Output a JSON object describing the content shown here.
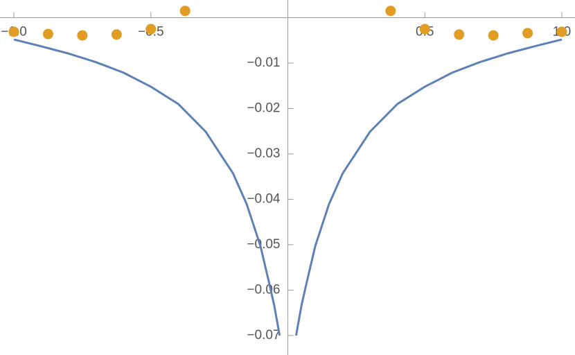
{
  "chart_data": {
    "type": "line",
    "xlim": [
      -1.0506,
      1.048
    ],
    "ylim": [
      -0.0743,
      0.0039
    ],
    "xticks": [
      {
        "value": -1.0,
        "label": "−1.0"
      },
      {
        "value": -0.5,
        "label": "−0.5"
      },
      {
        "value": 0.5,
        "label": "0.5"
      },
      {
        "value": 1.0,
        "label": "1.0"
      }
    ],
    "yticks": [
      {
        "value": -0.01,
        "label": "−0.01"
      },
      {
        "value": -0.02,
        "label": "−0.02"
      },
      {
        "value": -0.03,
        "label": "−0.03"
      },
      {
        "value": -0.04,
        "label": "−0.04"
      },
      {
        "value": -0.05,
        "label": "−0.05"
      },
      {
        "value": -0.06,
        "label": "−0.06"
      },
      {
        "value": -0.07,
        "label": "−0.07"
      }
    ],
    "series": [
      {
        "color": "#5e81b5",
        "style": "line",
        "x": [
          -1.0,
          -0.9,
          -0.8,
          -0.7,
          -0.6,
          -0.5,
          -0.4,
          -0.3,
          -0.2,
          -0.15,
          -0.1,
          -0.07,
          -0.05,
          -0.03,
          0,
          0.03,
          0.05,
          0.07,
          0.1,
          0.15,
          0.2,
          0.3,
          0.4,
          0.5,
          0.6,
          0.7,
          0.8,
          0.9,
          1.0
        ],
        "values": [
          -0.0048,
          -0.0063,
          -0.0079,
          -0.0098,
          -0.0121,
          -0.0152,
          -0.019,
          -0.0251,
          -0.0343,
          -0.0411,
          -0.0503,
          -0.058,
          -0.0633,
          -0.07,
          null,
          -0.07,
          -0.0633,
          -0.058,
          -0.0503,
          -0.0411,
          -0.0343,
          -0.0251,
          -0.019,
          -0.0152,
          -0.0121,
          -0.0098,
          -0.0079,
          -0.0063,
          -0.0048
        ]
      },
      {
        "color": "#e19c24",
        "style": "points",
        "x": [
          -1.0,
          -0.875,
          -0.75,
          -0.625,
          -0.5,
          -0.375,
          0.375,
          0.5,
          0.625,
          0.75,
          0.875,
          1.0
        ],
        "values": [
          -0.0031,
          -0.0036,
          -0.0039,
          -0.0037,
          -0.0025,
          0.0015,
          0.0015,
          -0.0025,
          -0.0037,
          -0.0039,
          -0.0034,
          -0.0031
        ]
      }
    ]
  }
}
